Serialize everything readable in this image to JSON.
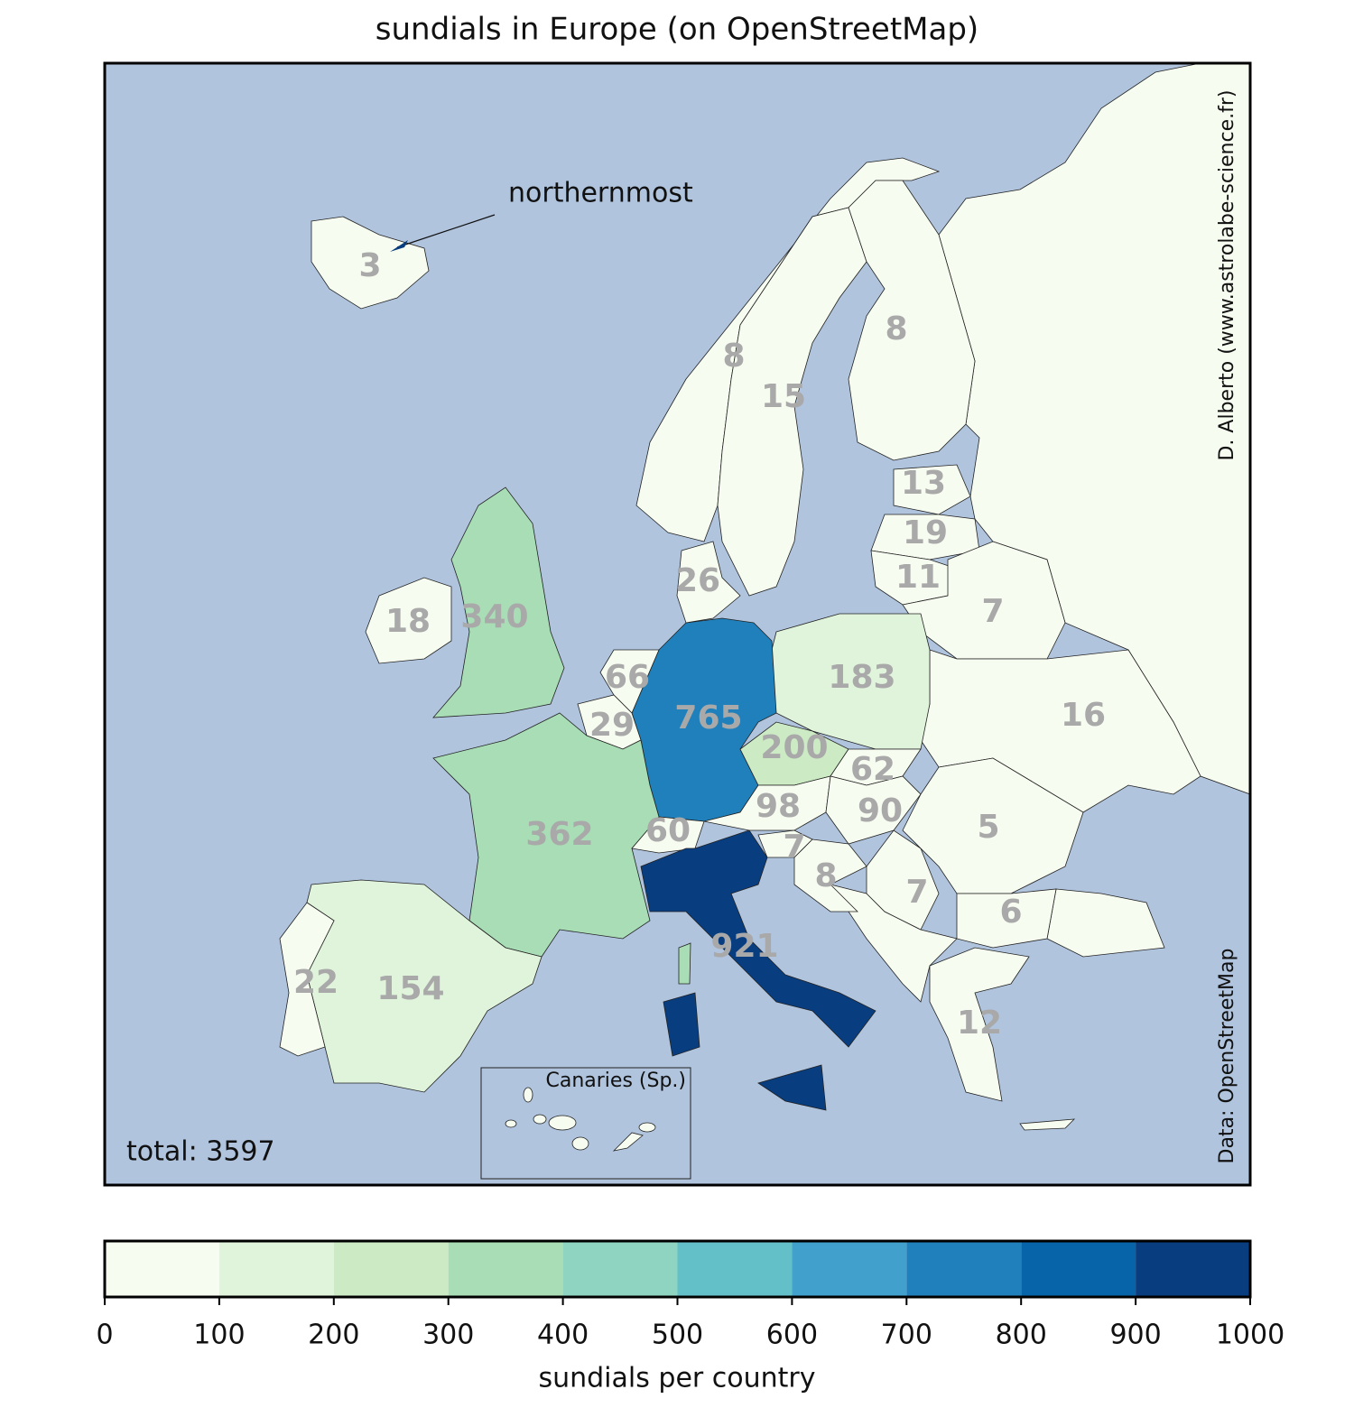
{
  "title": "sundials in Europe (on OpenStreetMap)",
  "annotation": "northernmost",
  "credit": "D. Alberto (www.astrolabe-science.fr)",
  "source": "Data: OpenStreetMap",
  "inset_label": "Canaries (Sp.)",
  "total": "total: 3597",
  "country_counts": [
    3,
    8,
    15,
    8,
    13,
    19,
    11,
    7,
    16,
    183,
    765,
    26,
    66,
    29,
    362,
    340,
    18,
    200,
    62,
    98,
    90,
    60,
    7,
    8,
    7,
    5,
    6,
    12,
    921,
    154,
    22
  ],
  "colorbar": {
    "label": "sundials per country",
    "ticks": [
      0,
      100,
      200,
      300,
      400,
      500,
      600,
      700,
      800,
      900,
      1000
    ],
    "colors": [
      "#f7fcf0",
      "#e0f3db",
      "#ccebc5",
      "#a8ddb5",
      "#8fd4c0",
      "#63bfc8",
      "#41a0cc",
      "#2080bb",
      "#0864a8",
      "#083d7f"
    ]
  }
}
